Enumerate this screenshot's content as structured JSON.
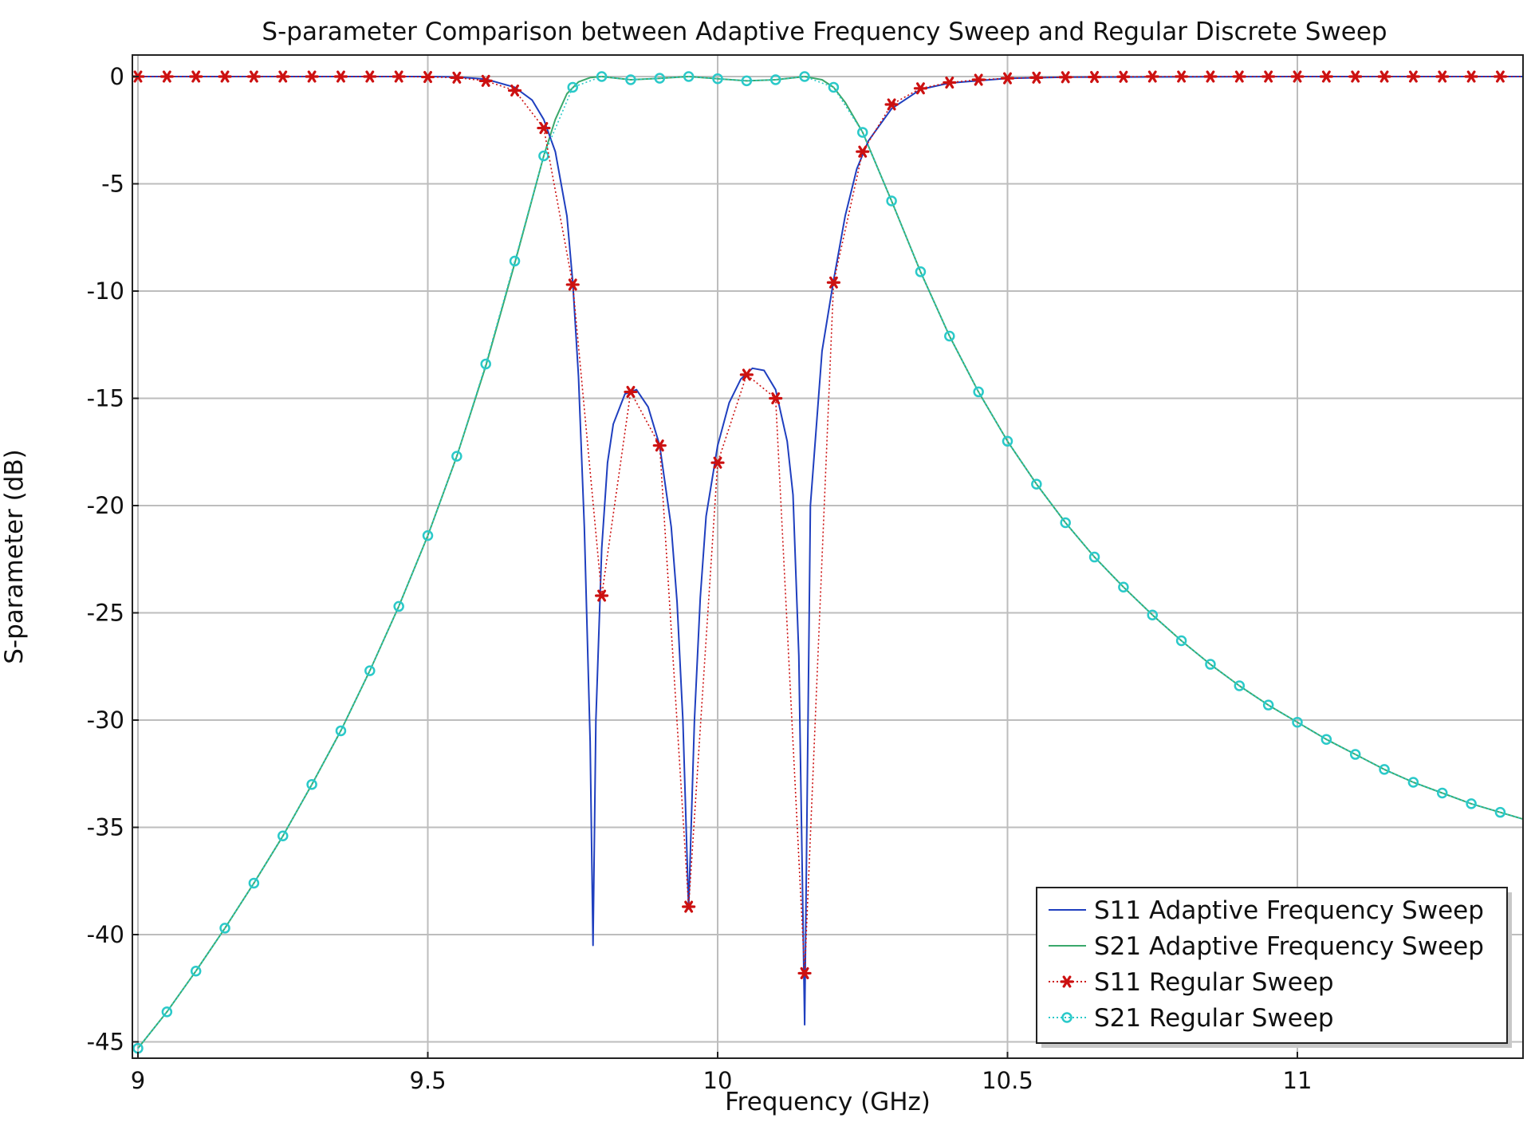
{
  "chart_data": {
    "type": "line",
    "title": "S-parameter Comparison between Adaptive Frequency Sweep and Regular Discrete Sweep",
    "xlabel": "Frequency (GHz)",
    "ylabel": "S-parameter (dB)",
    "xlim": [
      9.0,
      11.4
    ],
    "ylim": [
      -46,
      1
    ],
    "grid": true,
    "legend_position": "bottom-right",
    "x_ticks": [
      9,
      9.5,
      10,
      10.5,
      11
    ],
    "x_tick_labels": [
      "9",
      "9.5",
      "10",
      "10.5",
      "11"
    ],
    "y_ticks": [
      0,
      -5,
      -10,
      -15,
      -20,
      -25,
      -30,
      -35,
      -40,
      -45
    ],
    "y_tick_labels": [
      "0",
      "-5",
      "-10",
      "-15",
      "-20",
      "-25",
      "-30",
      "-35",
      "-40",
      "-45"
    ],
    "series": [
      {
        "name": "S11 Adaptive Frequency Sweep",
        "color": "#1f3fbf",
        "style": "solid",
        "marker": "none",
        "x": [
          9.0,
          9.1,
          9.2,
          9.3,
          9.4,
          9.5,
          9.55,
          9.6,
          9.65,
          9.68,
          9.7,
          9.72,
          9.74,
          9.75,
          9.76,
          9.77,
          9.78,
          9.785,
          9.79,
          9.8,
          9.81,
          9.82,
          9.84,
          9.86,
          9.88,
          9.9,
          9.92,
          9.93,
          9.94,
          9.95,
          9.96,
          9.97,
          9.98,
          10.0,
          10.02,
          10.04,
          10.06,
          10.08,
          10.1,
          10.12,
          10.13,
          10.14,
          10.15,
          10.16,
          10.18,
          10.2,
          10.22,
          10.24,
          10.26,
          10.3,
          10.35,
          10.4,
          10.5,
          10.6,
          11.0,
          11.4
        ],
        "values": [
          0,
          0,
          0,
          0,
          0,
          0,
          -0.02,
          -0.12,
          -0.5,
          -1.1,
          -2.0,
          -3.5,
          -6.5,
          -9.6,
          -14,
          -21,
          -31,
          -40.5,
          -30,
          -22,
          -18,
          -16.2,
          -14.8,
          -14.6,
          -15.4,
          -17.2,
          -21,
          -24.5,
          -30,
          -38.8,
          -30,
          -24.3,
          -20.5,
          -17.2,
          -15.2,
          -14.1,
          -13.6,
          -13.7,
          -14.6,
          -17,
          -19.5,
          -27,
          -44.2,
          -20,
          -12.8,
          -9.5,
          -6.5,
          -4.3,
          -3.0,
          -1.5,
          -0.6,
          -0.3,
          -0.08,
          -0.03,
          0,
          0
        ]
      },
      {
        "name": "S21 Adaptive Frequency Sweep",
        "color": "#3aa86b",
        "style": "solid",
        "marker": "none",
        "x": [
          9.0,
          9.05,
          9.1,
          9.15,
          9.2,
          9.25,
          9.3,
          9.35,
          9.4,
          9.45,
          9.5,
          9.55,
          9.6,
          9.65,
          9.68,
          9.7,
          9.72,
          9.74,
          9.76,
          9.78,
          9.8,
          9.85,
          9.9,
          9.95,
          10.0,
          10.05,
          10.1,
          10.15,
          10.18,
          10.2,
          10.22,
          10.25,
          10.3,
          10.35,
          10.4,
          10.45,
          10.5,
          10.55,
          10.6,
          10.65,
          10.7,
          10.75,
          10.8,
          10.85,
          10.9,
          10.95,
          11.0,
          11.05,
          11.1,
          11.15,
          11.2,
          11.25,
          11.3,
          11.35,
          11.4
        ],
        "values": [
          -45.3,
          -43.6,
          -41.7,
          -39.7,
          -37.6,
          -35.4,
          -33.0,
          -30.5,
          -27.7,
          -24.7,
          -21.4,
          -17.7,
          -13.5,
          -8.7,
          -5.7,
          -3.7,
          -2.0,
          -0.8,
          -0.25,
          -0.05,
          0.0,
          -0.15,
          -0.08,
          0.0,
          -0.1,
          -0.2,
          -0.15,
          0.0,
          -0.15,
          -0.5,
          -1.2,
          -2.6,
          -5.8,
          -9.1,
          -12.1,
          -14.7,
          -17.0,
          -19.0,
          -20.8,
          -22.4,
          -23.8,
          -25.1,
          -26.3,
          -27.4,
          -28.4,
          -29.3,
          -30.1,
          -30.9,
          -31.6,
          -32.3,
          -32.9,
          -33.4,
          -33.9,
          -34.3,
          -34.7
        ]
      },
      {
        "name": "S11 Regular Sweep",
        "color": "#cc1111",
        "style": "dotted",
        "marker": "asterisk",
        "x": [
          9.0,
          9.05,
          9.1,
          9.15,
          9.2,
          9.25,
          9.3,
          9.35,
          9.4,
          9.45,
          9.5,
          9.55,
          9.6,
          9.65,
          9.7,
          9.75,
          9.8,
          9.85,
          9.9,
          9.95,
          10.0,
          10.05,
          10.1,
          10.15,
          10.2,
          10.25,
          10.3,
          10.35,
          10.4,
          10.45,
          10.5,
          10.55,
          10.6,
          10.65,
          10.7,
          10.75,
          10.8,
          10.85,
          10.9,
          10.95,
          11.0,
          11.05,
          11.1,
          11.15,
          11.2,
          11.25,
          11.3,
          11.35,
          11.4
        ],
        "values": [
          0,
          0,
          0,
          0,
          0,
          0,
          0,
          0,
          0,
          0,
          -0.02,
          -0.05,
          -0.2,
          -0.65,
          -2.4,
          -9.7,
          -24.2,
          -14.7,
          -17.2,
          -38.7,
          -18.0,
          -13.9,
          -15.0,
          -41.8,
          -9.6,
          -3.5,
          -1.3,
          -0.55,
          -0.28,
          -0.15,
          -0.08,
          -0.05,
          -0.03,
          -0.02,
          -0.01,
          0,
          0,
          0,
          0,
          0,
          0,
          0,
          0,
          0,
          0,
          0,
          0,
          0,
          0
        ]
      },
      {
        "name": "S21 Regular Sweep",
        "color": "#2ac9c9",
        "style": "dotted",
        "marker": "circle",
        "x": [
          9.0,
          9.05,
          9.1,
          9.15,
          9.2,
          9.25,
          9.3,
          9.35,
          9.4,
          9.45,
          9.5,
          9.55,
          9.6,
          9.65,
          9.7,
          9.75,
          9.8,
          9.85,
          9.9,
          9.95,
          10.0,
          10.05,
          10.1,
          10.15,
          10.2,
          10.25,
          10.3,
          10.35,
          10.4,
          10.45,
          10.5,
          10.55,
          10.6,
          10.65,
          10.7,
          10.75,
          10.8,
          10.85,
          10.9,
          10.95,
          11.0,
          11.05,
          11.1,
          11.15,
          11.2,
          11.25,
          11.3,
          11.35,
          11.4
        ],
        "values": [
          -45.3,
          -43.6,
          -41.7,
          -39.7,
          -37.6,
          -35.4,
          -33.0,
          -30.5,
          -27.7,
          -24.7,
          -21.4,
          -17.7,
          -13.4,
          -8.6,
          -3.7,
          -0.5,
          0.0,
          -0.15,
          -0.08,
          0.0,
          -0.1,
          -0.2,
          -0.15,
          0.0,
          -0.5,
          -2.6,
          -5.8,
          -9.1,
          -12.1,
          -14.7,
          -17.0,
          -19.0,
          -20.8,
          -22.4,
          -23.8,
          -25.1,
          -26.3,
          -27.4,
          -28.4,
          -29.3,
          -30.1,
          -30.9,
          -31.6,
          -32.3,
          -32.9,
          -33.4,
          -33.9,
          -34.3,
          -34.7
        ]
      }
    ]
  }
}
